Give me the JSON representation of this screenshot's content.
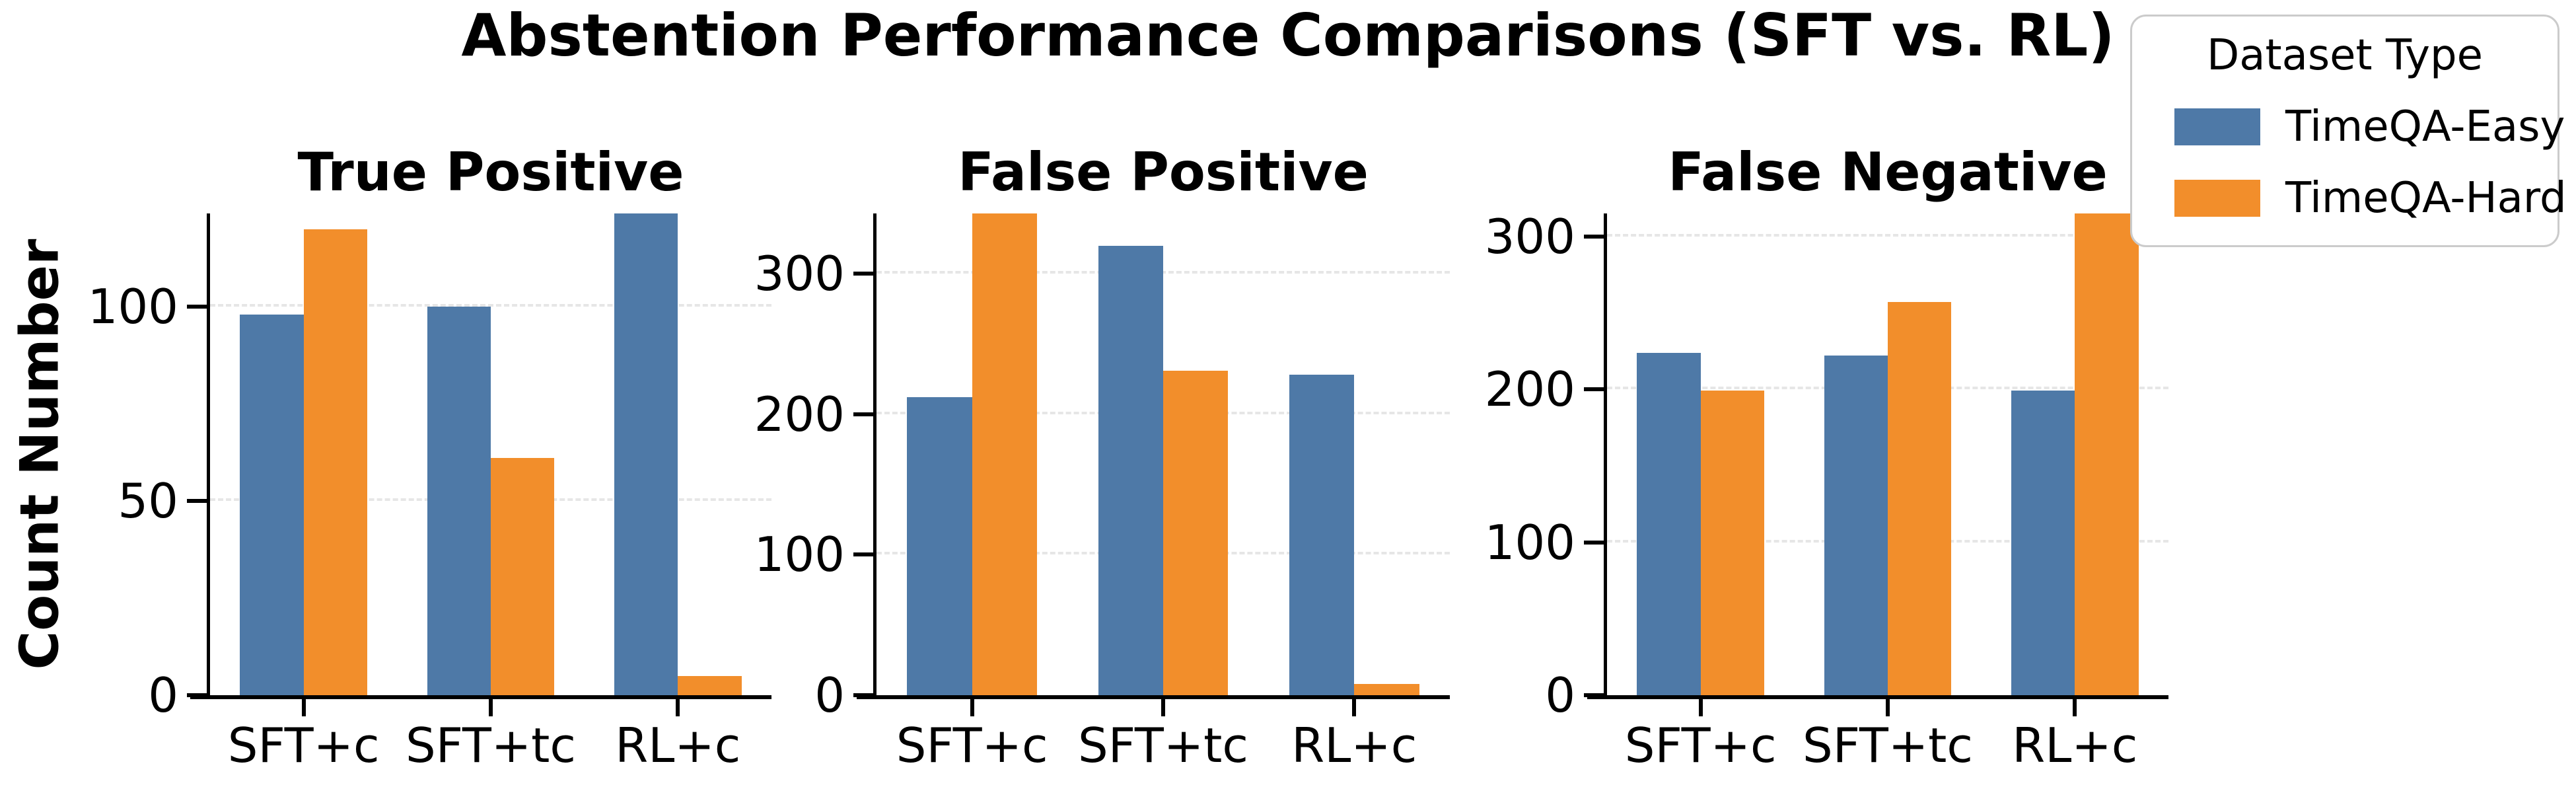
{
  "figure": {
    "title": "Abstention Performance Comparisons (SFT vs. RL)",
    "ylabel": "Count Number"
  },
  "legend": {
    "title": "Dataset Type",
    "entries": [
      {
        "label": "TimeQA-Easy",
        "color": "#4e79a7"
      },
      {
        "label": "TimeQA-Hard",
        "color": "#f28e2b"
      }
    ]
  },
  "chart_data": [
    {
      "type": "bar",
      "title": "True Positive",
      "categories": [
        "SFT+c",
        "SFT+tc",
        "RL+c"
      ],
      "series": [
        {
          "name": "TimeQA-Easy",
          "color": "#4e79a7",
          "values": [
            98,
            100,
            124
          ]
        },
        {
          "name": "TimeQA-Hard",
          "color": "#f28e2b",
          "values": [
            120,
            61,
            5
          ]
        }
      ],
      "yticks": [
        0,
        50,
        100
      ],
      "ylim": [
        0,
        124
      ],
      "grid": "dashed horizontal at yticks",
      "legend_position": "figure top-right"
    },
    {
      "type": "bar",
      "title": "False Positive",
      "categories": [
        "SFT+c",
        "SFT+tc",
        "RL+c"
      ],
      "series": [
        {
          "name": "TimeQA-Easy",
          "color": "#4e79a7",
          "values": [
            212,
            320,
            228
          ]
        },
        {
          "name": "TimeQA-Hard",
          "color": "#f28e2b",
          "values": [
            343,
            231,
            8
          ]
        }
      ],
      "yticks": [
        0,
        100,
        200,
        300
      ],
      "ylim": [
        0,
        343
      ],
      "grid": "dashed horizontal at yticks",
      "legend_position": "figure top-right"
    },
    {
      "type": "bar",
      "title": "False Negative",
      "categories": [
        "SFT+c",
        "SFT+tc",
        "RL+c"
      ],
      "series": [
        {
          "name": "TimeQA-Easy",
          "color": "#4e79a7",
          "values": [
            224,
            222,
            199
          ]
        },
        {
          "name": "TimeQA-Hard",
          "color": "#f28e2b",
          "values": [
            199,
            257,
            315
          ]
        }
      ],
      "yticks": [
        0,
        100,
        200,
        300
      ],
      "ylim": [
        0,
        315
      ],
      "grid": "dashed horizontal at yticks",
      "legend_position": "figure top-right"
    }
  ]
}
